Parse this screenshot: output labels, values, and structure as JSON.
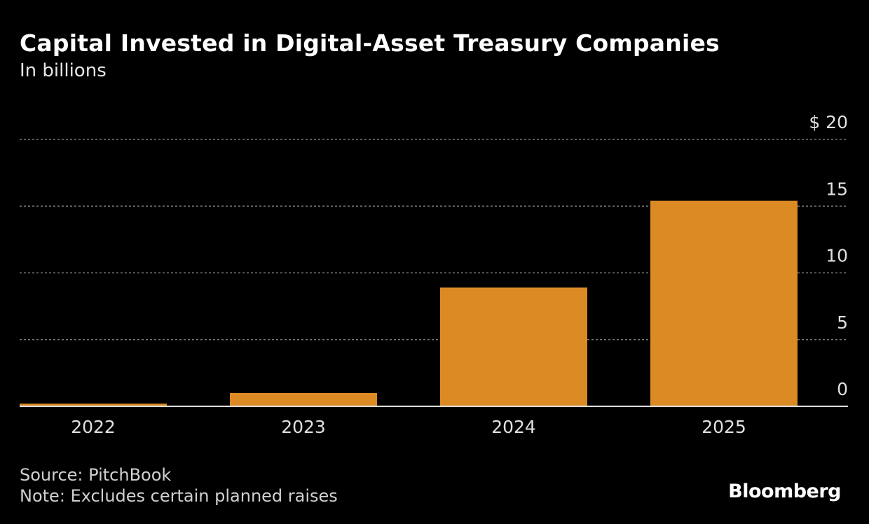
{
  "chart_data": {
    "type": "bar",
    "title": "Capital Invested in Digital-Asset Treasury Companies",
    "subtitle": "In billions",
    "categories": [
      "2022",
      "2023",
      "2024",
      "2025"
    ],
    "values": [
      0.2,
      1.0,
      8.9,
      15.4
    ],
    "ylim": [
      0,
      20
    ],
    "yticks": [
      0,
      5,
      10,
      15,
      20
    ],
    "ytick_labels": [
      "0",
      "5",
      "10",
      "15",
      "$ 20"
    ],
    "grid": true,
    "y_axis_side": "right",
    "bar_color": "#db8a24"
  },
  "footer": {
    "source": "Source: PitchBook",
    "note": "Note: Excludes certain planned raises",
    "logo": "Bloomberg"
  }
}
